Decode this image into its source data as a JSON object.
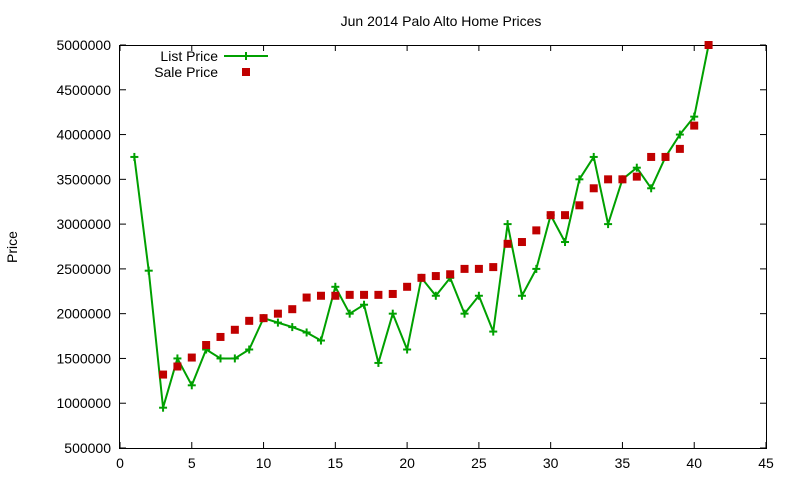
{
  "chart_data": {
    "type": "line",
    "title": "Jun 2014 Palo Alto Home Prices",
    "xlabel": "",
    "ylabel": "Price",
    "xlim": [
      0,
      45
    ],
    "ylim": [
      500000,
      5000000
    ],
    "x_ticks": [
      0,
      5,
      10,
      15,
      20,
      25,
      30,
      35,
      40,
      45
    ],
    "y_ticks": [
      500000,
      1000000,
      1500000,
      2000000,
      2500000,
      3000000,
      3500000,
      4000000,
      4500000,
      5000000
    ],
    "grid": false,
    "legend": "top-left",
    "series": [
      {
        "name": "List Price",
        "color": "#00a000",
        "style": "linespoints",
        "marker": "plus",
        "x": [
          1,
          2,
          3,
          4,
          5,
          6,
          7,
          8,
          9,
          10,
          11,
          12,
          13,
          14,
          15,
          16,
          17,
          18,
          19,
          20,
          21,
          22,
          23,
          24,
          25,
          26,
          27,
          28,
          29,
          30,
          31,
          32,
          33,
          34,
          35,
          36,
          37,
          38,
          39,
          40,
          41
        ],
        "values": [
          3750000,
          2480000,
          950000,
          1500000,
          1200000,
          1600000,
          1500000,
          1500000,
          1600000,
          1950000,
          1900000,
          1850000,
          1790000,
          1700000,
          2300000,
          2000000,
          2100000,
          1450000,
          2000000,
          1600000,
          2400000,
          2200000,
          2400000,
          2000000,
          2200000,
          1800000,
          3000000,
          2200000,
          2500000,
          3100000,
          2800000,
          3500000,
          3750000,
          3000000,
          3500000,
          3630000,
          3400000,
          3750000,
          4000000,
          4200000,
          5000000
        ]
      },
      {
        "name": "Sale Price",
        "color": "#c00000",
        "style": "points",
        "marker": "square",
        "x": [
          3,
          4,
          5,
          6,
          7,
          8,
          9,
          10,
          11,
          12,
          13,
          14,
          15,
          16,
          17,
          18,
          19,
          20,
          21,
          22,
          23,
          24,
          25,
          26,
          27,
          28,
          29,
          30,
          31,
          32,
          33,
          34,
          35,
          36,
          37,
          38,
          39,
          40,
          41
        ],
        "values": [
          1320000,
          1410000,
          1510000,
          1650000,
          1740000,
          1820000,
          1920000,
          1950000,
          2000000,
          2050000,
          2180000,
          2200000,
          2200000,
          2210000,
          2210000,
          2210000,
          2220000,
          2300000,
          2400000,
          2420000,
          2440000,
          2500000,
          2500000,
          2520000,
          2780000,
          2800000,
          2930000,
          3100000,
          3100000,
          3210000,
          3400000,
          3500000,
          3500000,
          3530000,
          3750000,
          3750000,
          3840000,
          4100000,
          5000000
        ]
      }
    ]
  }
}
